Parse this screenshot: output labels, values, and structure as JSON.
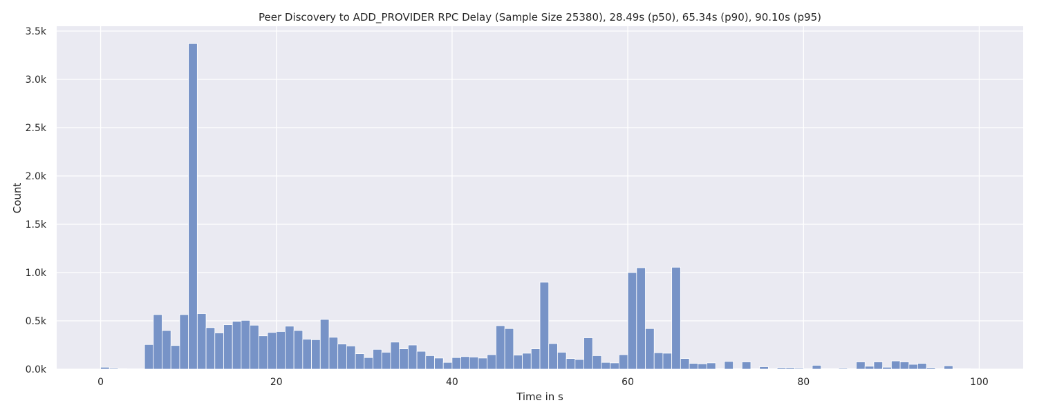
{
  "chart_data": {
    "type": "bar",
    "title": "Peer Discovery to ADD_PROVIDER RPC Delay (Sample Size 25380), 28.49s (p50), 65.34s (p90), 90.10s (p95)",
    "xlabel": "Time in s",
    "ylabel": "Count",
    "xlim": [
      -5,
      105
    ],
    "ylim": [
      0,
      3550
    ],
    "grid": true,
    "legend": "none",
    "bin_width": 1,
    "x_ticks": [
      0,
      20,
      40,
      60,
      80,
      100
    ],
    "x_tick_labels": [
      "0",
      "20",
      "40",
      "60",
      "80",
      "100"
    ],
    "y_ticks": [
      0,
      500,
      1000,
      1500,
      2000,
      2500,
      3000,
      3500
    ],
    "y_tick_labels": [
      "0.0k",
      "0.5k",
      "1.0k",
      "1.5k",
      "2.0k",
      "2.5k",
      "3.0k",
      "3.5k"
    ],
    "bin_starts": [
      0,
      1,
      2,
      3,
      4,
      5,
      6,
      7,
      8,
      9,
      10,
      11,
      12,
      13,
      14,
      15,
      16,
      17,
      18,
      19,
      20,
      21,
      22,
      23,
      24,
      25,
      26,
      27,
      28,
      29,
      30,
      31,
      32,
      33,
      34,
      35,
      36,
      37,
      38,
      39,
      40,
      41,
      42,
      43,
      44,
      45,
      46,
      47,
      48,
      49,
      50,
      51,
      52,
      53,
      54,
      55,
      56,
      57,
      58,
      59,
      60,
      61,
      62,
      63,
      64,
      65,
      66,
      67,
      68,
      69,
      70,
      71,
      72,
      73,
      74,
      75,
      76,
      77,
      78,
      79,
      80,
      81,
      82,
      83,
      84,
      85,
      86,
      87,
      88,
      89,
      90,
      91,
      92,
      93,
      94,
      95,
      96,
      97,
      98,
      99
    ],
    "values": [
      20,
      10,
      5,
      3,
      3,
      255,
      565,
      400,
      245,
      565,
      3370,
      575,
      430,
      375,
      460,
      495,
      505,
      455,
      345,
      380,
      390,
      445,
      400,
      310,
      305,
      515,
      330,
      260,
      240,
      160,
      120,
      205,
      175,
      280,
      210,
      250,
      185,
      140,
      115,
      70,
      120,
      130,
      125,
      115,
      150,
      450,
      420,
      145,
      165,
      210,
      900,
      265,
      175,
      110,
      100,
      325,
      140,
      70,
      65,
      150,
      1000,
      1050,
      420,
      170,
      165,
      1055,
      110,
      60,
      55,
      65,
      5,
      80,
      5,
      75,
      5,
      25,
      5,
      15,
      15,
      10,
      5,
      40,
      5,
      5,
      10,
      5,
      75,
      30,
      75,
      20,
      85,
      75,
      50,
      60,
      15,
      5,
      35,
      5,
      5,
      3
    ],
    "colors": {
      "bar": "#7793c7",
      "bar_edge": "#ffffff",
      "plot_bg": "#eaeaf2",
      "grid": "#ffffff",
      "text": "#262626"
    }
  }
}
